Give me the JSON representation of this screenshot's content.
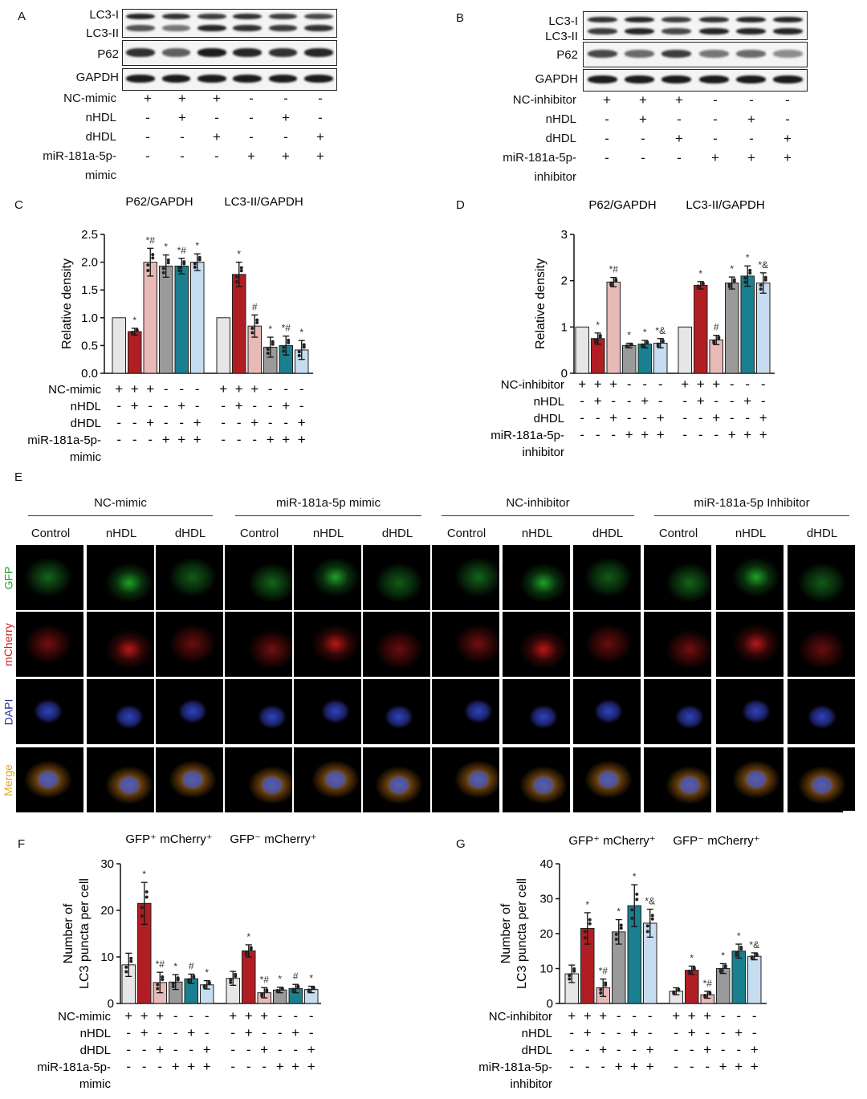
{
  "panels": {
    "A": "A",
    "B": "B",
    "C": "C",
    "D": "D",
    "E": "E",
    "F": "F",
    "G": "G"
  },
  "blot_labels": {
    "lc3_1": "LC3-I",
    "lc3_2": "LC3-II",
    "p62": "P62",
    "gapdh": "GAPDH"
  },
  "treatments_mimic": [
    {
      "label": "NC-mimic",
      "signs": [
        "+",
        "+",
        "+",
        "-",
        "-",
        "-"
      ]
    },
    {
      "label": "nHDL",
      "signs": [
        "-",
        "+",
        "-",
        "-",
        "+",
        "-"
      ]
    },
    {
      "label": "dHDL",
      "signs": [
        "-",
        "-",
        "+",
        "-",
        "-",
        "+"
      ]
    },
    {
      "label": "miR-181a-5p-",
      "signs": [
        "-",
        "-",
        "-",
        "+",
        "+",
        "+"
      ]
    },
    {
      "label": "mimic",
      "signs": []
    }
  ],
  "treatments_inhibitor": [
    {
      "label": "NC-inhibitor",
      "signs": [
        "+",
        "+",
        "+",
        "-",
        "-",
        "-"
      ]
    },
    {
      "label": "nHDL",
      "signs": [
        "-",
        "+",
        "-",
        "-",
        "+",
        "-"
      ]
    },
    {
      "label": "dHDL",
      "signs": [
        "-",
        "-",
        "+",
        "-",
        "-",
        "+"
      ]
    },
    {
      "label": "miR-181a-5p-",
      "signs": [
        "-",
        "-",
        "-",
        "+",
        "+",
        "+"
      ]
    },
    {
      "label": "inhibitor",
      "signs": []
    }
  ],
  "colors": {
    "control": "#e6e6e6",
    "nhdl": "#b01e23",
    "dhdl": "#e8b9b7",
    "mir_control": "#9a9a9a",
    "mir_nhdl": "#1a7f8e",
    "mir_dhdl": "#c6dcf0"
  },
  "chart_data": [
    {
      "id": "C",
      "type": "bar",
      "group_titles": [
        "P62/GAPDH",
        "LC3-II/GAPDH"
      ],
      "ylabel": "Relative density",
      "ylim": [
        0,
        2.5
      ],
      "yticks": [
        "0.0",
        "0.5",
        "1.0",
        "1.5",
        "2.0",
        "2.5"
      ],
      "groups": [
        {
          "values": [
            1.0,
            0.75,
            2.0,
            1.93,
            1.93,
            2.0
          ],
          "err": [
            0,
            0.06,
            0.25,
            0.2,
            0.14,
            0.15
          ],
          "sig": [
            "",
            "*",
            "*#",
            "*",
            "*#",
            "*"
          ]
        },
        {
          "values": [
            1.0,
            1.78,
            0.85,
            0.47,
            0.5,
            0.42
          ],
          "err": [
            0,
            0.22,
            0.2,
            0.18,
            0.17,
            0.17
          ],
          "sig": [
            "",
            "*",
            "#",
            "*",
            "*#",
            "*"
          ]
        }
      ]
    },
    {
      "id": "D",
      "type": "bar",
      "group_titles": [
        "P62/GAPDH",
        "LC3-II/GAPDH"
      ],
      "ylabel": "Relative density",
      "ylim": [
        0,
        3
      ],
      "yticks": [
        "0",
        "1",
        "2",
        "3"
      ],
      "groups": [
        {
          "values": [
            1.0,
            0.75,
            1.97,
            0.6,
            0.63,
            0.65
          ],
          "err": [
            0,
            0.12,
            0.1,
            0.05,
            0.08,
            0.1
          ],
          "sig": [
            "",
            "*",
            "*#",
            "*",
            "*",
            "*&"
          ]
        },
        {
          "values": [
            1.0,
            1.9,
            0.72,
            1.95,
            2.1,
            1.95
          ],
          "err": [
            0,
            0.08,
            0.1,
            0.13,
            0.22,
            0.22
          ],
          "sig": [
            "",
            "*",
            "#",
            "*",
            "*",
            "*&"
          ]
        }
      ]
    },
    {
      "id": "F",
      "type": "bar",
      "group_titles": [
        "GFP⁺ mCherry⁺",
        "GFP⁻ mCherry⁺"
      ],
      "ylabel_lines": [
        "Number of",
        "LC3 puncta per cell"
      ],
      "ylim": [
        0,
        30
      ],
      "yticks": [
        "0",
        "10",
        "20",
        "30"
      ],
      "groups": [
        {
          "values": [
            8.3,
            21.5,
            4.5,
            4.6,
            5.3,
            4.0
          ],
          "err": [
            2.5,
            4.5,
            2.2,
            1.6,
            1.0,
            0.9
          ],
          "sig": [
            "",
            "*",
            "*#",
            "*",
            "#",
            "*"
          ]
        },
        {
          "values": [
            5.4,
            11.3,
            2.3,
            2.9,
            3.2,
            3.0
          ],
          "err": [
            1.5,
            1.3,
            1.1,
            0.6,
            0.9,
            0.7
          ],
          "sig": [
            "",
            "*",
            "*#",
            "*",
            "#",
            "*"
          ]
        }
      ]
    },
    {
      "id": "G",
      "type": "bar",
      "group_titles": [
        "GFP⁺ mCherry⁺",
        "GFP⁻ mCherry⁺"
      ],
      "ylabel_lines": [
        "Number of",
        "LC3 puncta per cell"
      ],
      "ylim": [
        0,
        40
      ],
      "yticks": [
        "0",
        "10",
        "20",
        "30",
        "40"
      ],
      "groups": [
        {
          "values": [
            8.5,
            21.5,
            4.5,
            20.5,
            28.0,
            23.0
          ],
          "err": [
            2.5,
            4.5,
            2.5,
            3.5,
            6.0,
            4.0
          ],
          "sig": [
            "",
            "*",
            "*#",
            "*",
            "*",
            "*&"
          ]
        },
        {
          "values": [
            3.5,
            9.5,
            2.5,
            10.0,
            15.0,
            13.5
          ],
          "err": [
            1.0,
            1.2,
            1.0,
            1.4,
            2.0,
            1.0
          ],
          "sig": [
            "",
            "*",
            "*#",
            "*",
            "*",
            "*&"
          ]
        }
      ]
    }
  ],
  "microscopy": {
    "groups": [
      "NC-mimic",
      "miR-181a-5p mimic",
      "NC-inhibitor",
      "miR-181a-5p Inhibitor"
    ],
    "columns": [
      "Control",
      "nHDL",
      "dHDL"
    ],
    "rows": [
      "GFP",
      "mCherry",
      "DAPI",
      "Merge"
    ],
    "row_colors": [
      "#1fa32a",
      "#d62020",
      "#2830a0",
      "#e8a21a"
    ]
  }
}
